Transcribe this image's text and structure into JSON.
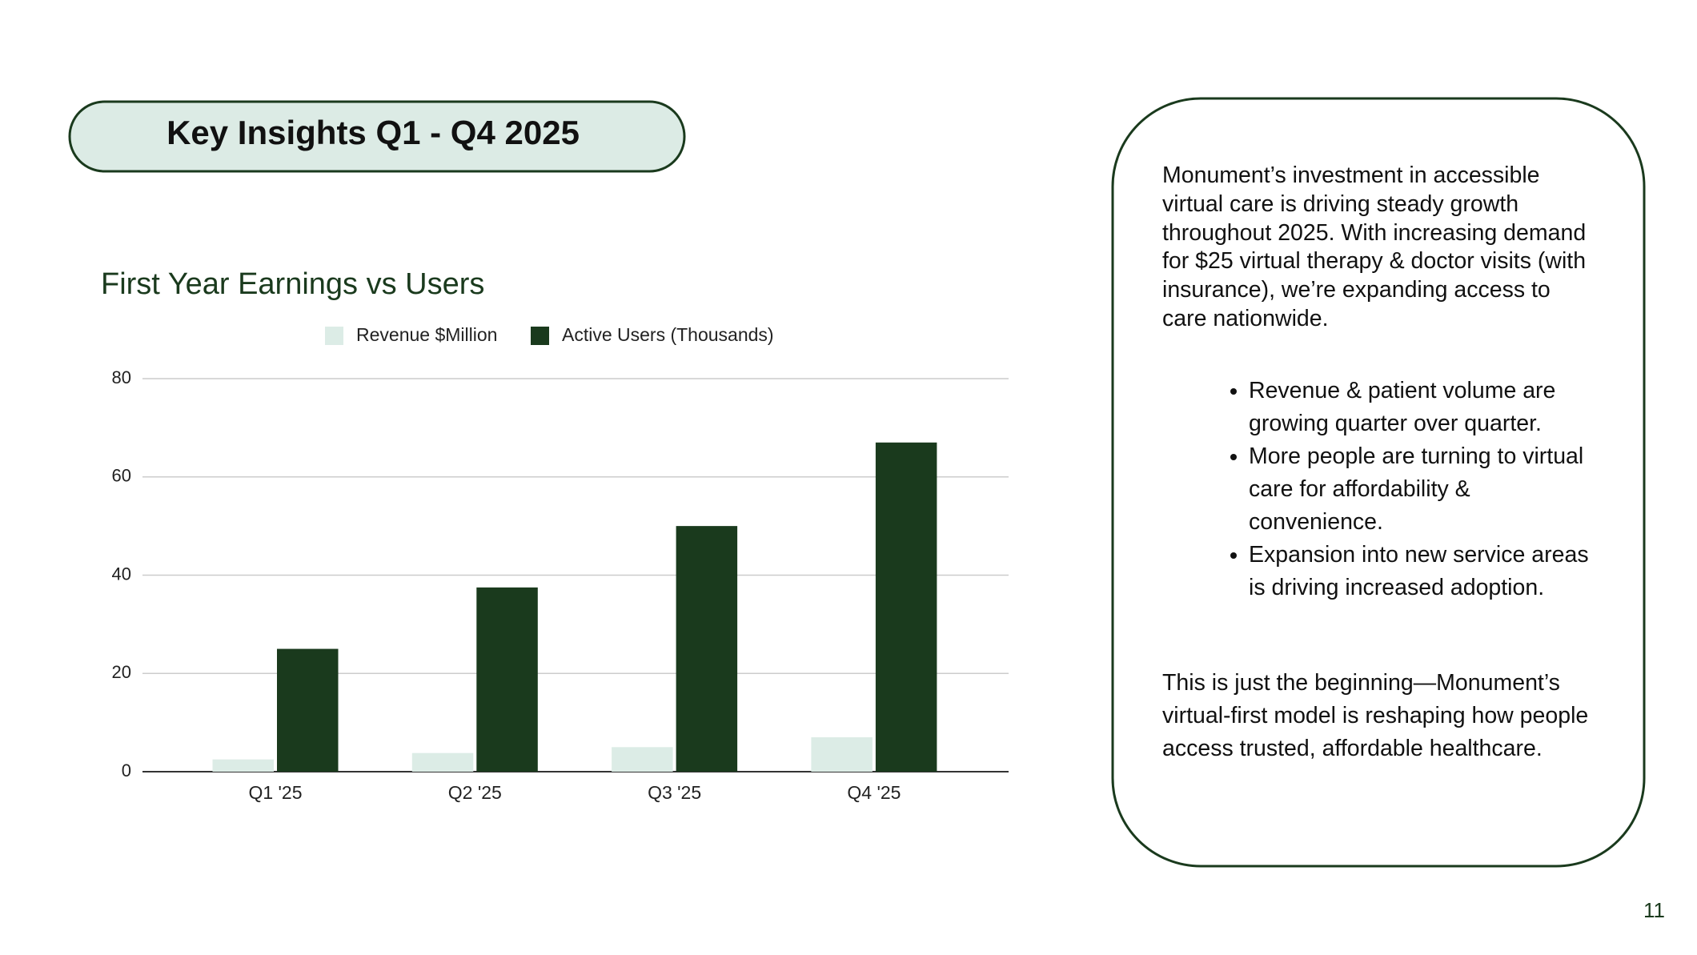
{
  "header": {
    "title": "Key Insights Q1 - Q4   2025"
  },
  "chart_data": {
    "type": "bar",
    "title": "First Year Earnings vs Users",
    "categories": [
      "Q1 '25",
      "Q2 '25",
      "Q3 '25",
      "Q4 '25"
    ],
    "series": [
      {
        "name": "Revenue $Million",
        "color": "#dcece6",
        "values": [
          2.5,
          3.8,
          5,
          7
        ]
      },
      {
        "name": "Active Users (Thousands)",
        "color": "#1a3a1d",
        "values": [
          25,
          37.5,
          50,
          67
        ]
      }
    ],
    "ylim": [
      0,
      80
    ],
    "yticks": [
      0,
      20,
      40,
      60,
      80
    ],
    "grid": true,
    "legend": "top"
  },
  "sidebar": {
    "intro": "Monument’s investment in accessible virtual care is driving steady growth throughout 2025. With increasing demand for $25 virtual therapy & doctor visits (with insurance), we’re expanding access to care nationwide.",
    "bullets": [
      "Revenue & patient volume are growing quarter over quarter.",
      "More people are turning to virtual care for affordability & convenience.",
      "Expansion into new service areas is driving increased adoption."
    ],
    "closing": "This is just the beginning—Monument’s virtual-first model is reshaping how people access trusted, affordable healthcare."
  },
  "page_number": "11"
}
